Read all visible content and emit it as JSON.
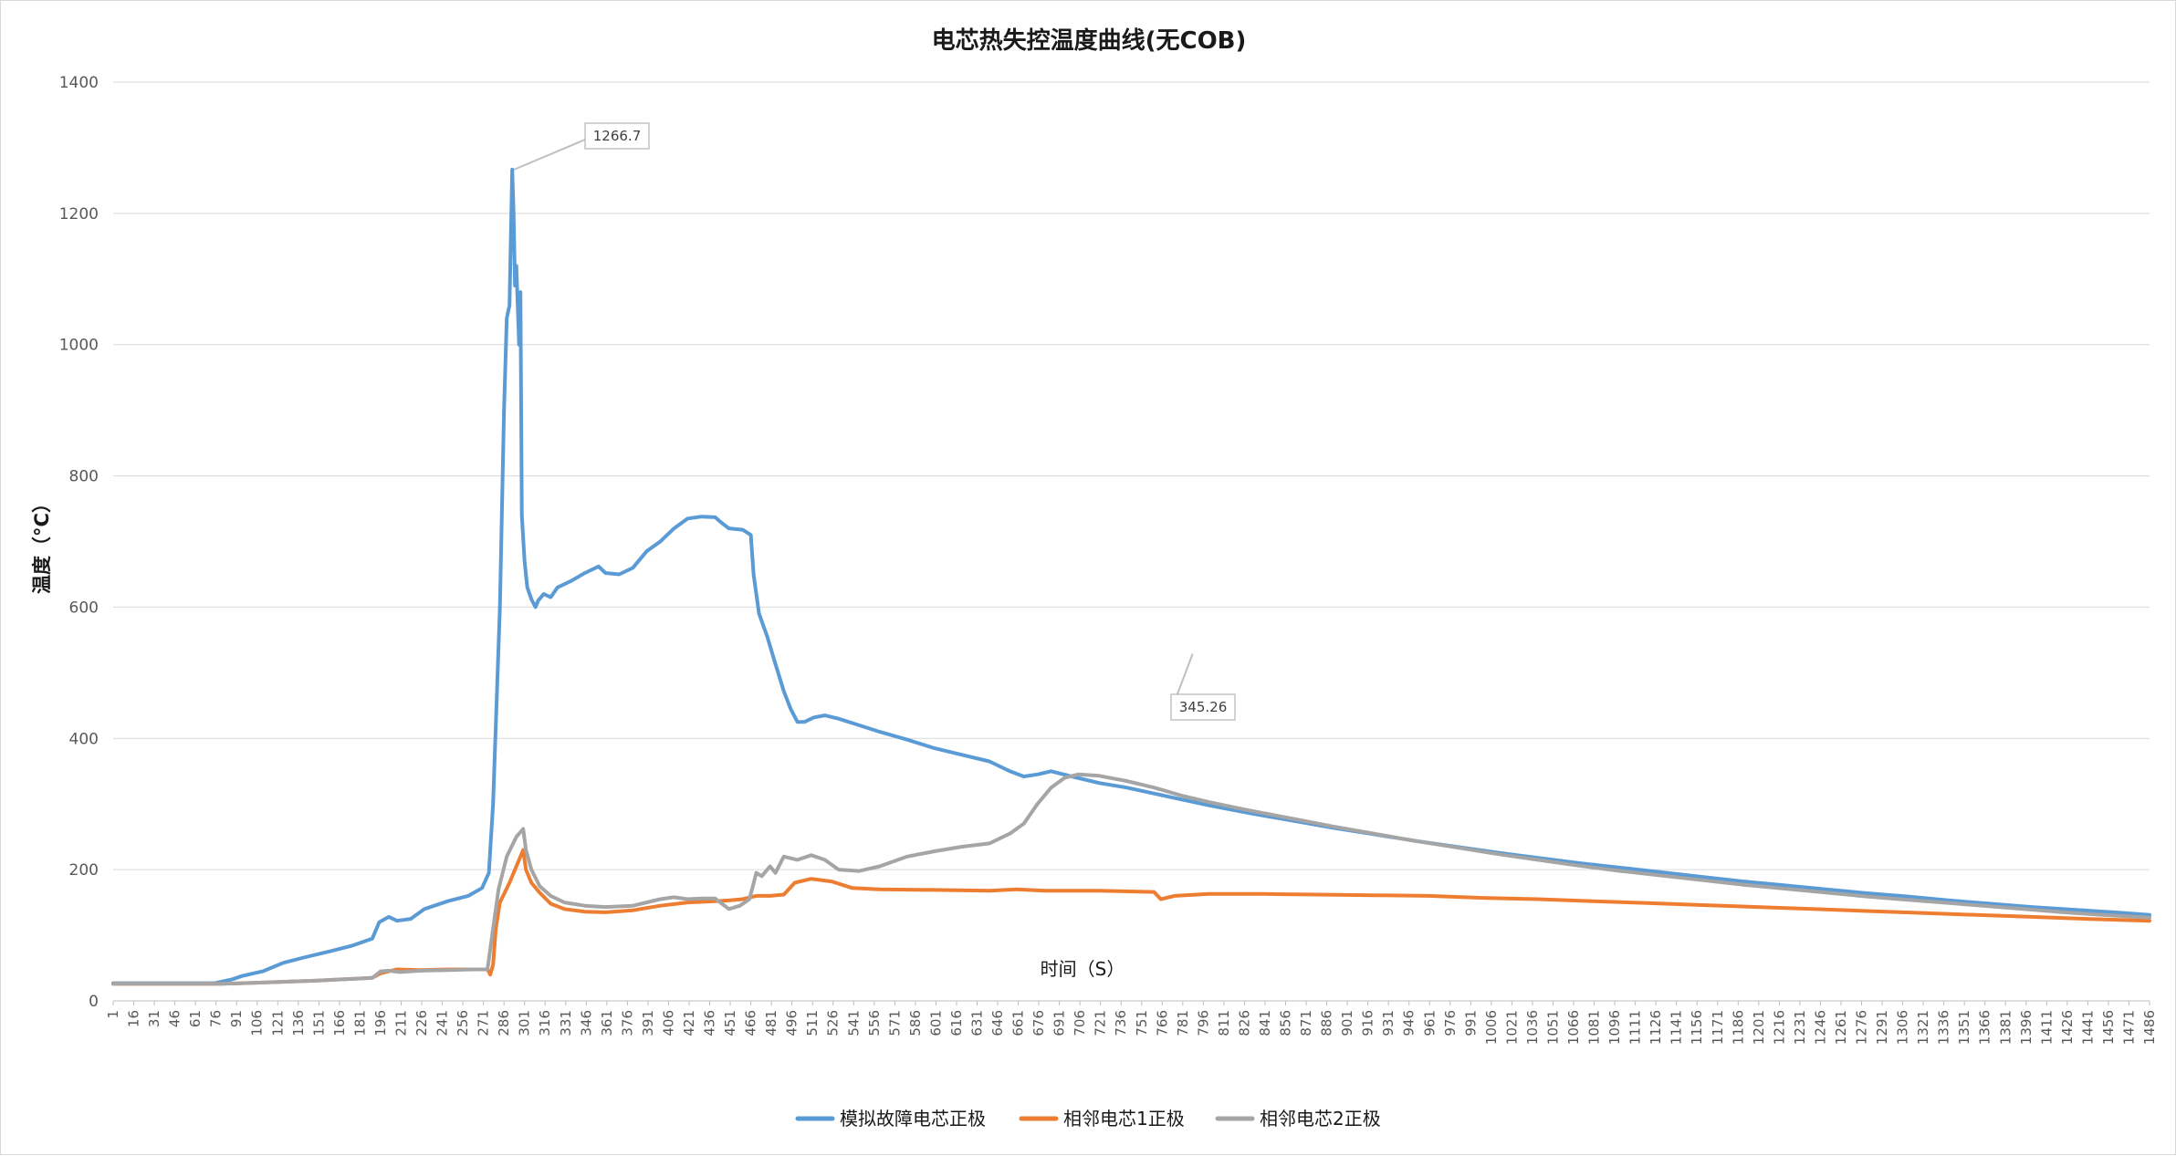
{
  "chart_data": {
    "type": "line",
    "title": "电芯热失控温度曲线(无COB)",
    "xlabel": "时间（S）",
    "ylabel": "温度（°C）",
    "ylim": [
      0,
      1400
    ],
    "yticks": [
      0,
      200,
      400,
      600,
      800,
      1000,
      1200,
      1400
    ],
    "xlim": [
      1,
      1486
    ],
    "xtick_start": 1,
    "xtick_step": 15,
    "xtick_end": 1486,
    "grid": true,
    "legend_position": "bottom",
    "series": [
      {
        "name": "模拟故障电芯正极",
        "color": "#5B9BD5",
        "points": [
          [
            1,
            27
          ],
          [
            40,
            27
          ],
          [
            75,
            27
          ],
          [
            88,
            33
          ],
          [
            95,
            38
          ],
          [
            110,
            45
          ],
          [
            125,
            58
          ],
          [
            140,
            66
          ],
          [
            160,
            76
          ],
          [
            175,
            84
          ],
          [
            190,
            95
          ],
          [
            195,
            120
          ],
          [
            202,
            128
          ],
          [
            208,
            122
          ],
          [
            218,
            125
          ],
          [
            228,
            140
          ],
          [
            245,
            152
          ],
          [
            260,
            160
          ],
          [
            270,
            172
          ],
          [
            275,
            195
          ],
          [
            278,
            300
          ],
          [
            280,
            420
          ],
          [
            283,
            600
          ],
          [
            286,
            900
          ],
          [
            288,
            1040
          ],
          [
            290,
            1060
          ],
          [
            292,
            1266.7
          ],
          [
            293,
            1200
          ],
          [
            294,
            1090
          ],
          [
            295,
            1120
          ],
          [
            297,
            1000
          ],
          [
            298,
            1080
          ],
          [
            299,
            740
          ],
          [
            301,
            670
          ],
          [
            303,
            630
          ],
          [
            306,
            612
          ],
          [
            309,
            600
          ],
          [
            311,
            610
          ],
          [
            315,
            620
          ],
          [
            320,
            615
          ],
          [
            325,
            630
          ],
          [
            335,
            640
          ],
          [
            345,
            652
          ],
          [
            355,
            662
          ],
          [
            360,
            652
          ],
          [
            370,
            650
          ],
          [
            380,
            660
          ],
          [
            390,
            685
          ],
          [
            400,
            700
          ],
          [
            410,
            720
          ],
          [
            420,
            735
          ],
          [
            430,
            738
          ],
          [
            440,
            737
          ],
          [
            445,
            728
          ],
          [
            450,
            720
          ],
          [
            460,
            718
          ],
          [
            466,
            710
          ],
          [
            468,
            650
          ],
          [
            472,
            590
          ],
          [
            478,
            555
          ],
          [
            483,
            520
          ],
          [
            490,
            472
          ],
          [
            495,
            445
          ],
          [
            500,
            425
          ],
          [
            505,
            425
          ],
          [
            512,
            432
          ],
          [
            520,
            435
          ],
          [
            530,
            430
          ],
          [
            545,
            420
          ],
          [
            560,
            410
          ],
          [
            580,
            398
          ],
          [
            600,
            385
          ],
          [
            620,
            375
          ],
          [
            640,
            365
          ],
          [
            655,
            350
          ],
          [
            665,
            342
          ],
          [
            675,
            345
          ],
          [
            685,
            350
          ],
          [
            700,
            342
          ],
          [
            720,
            332
          ],
          [
            740,
            325
          ],
          [
            760,
            316
          ],
          [
            780,
            307
          ],
          [
            800,
            298
          ],
          [
            830,
            286
          ],
          [
            860,
            275
          ],
          [
            890,
            264
          ],
          [
            920,
            254
          ],
          [
            950,
            244
          ],
          [
            980,
            235
          ],
          [
            1010,
            226
          ],
          [
            1040,
            218
          ],
          [
            1070,
            210
          ],
          [
            1100,
            203
          ],
          [
            1130,
            196
          ],
          [
            1160,
            189
          ],
          [
            1190,
            182
          ],
          [
            1220,
            176
          ],
          [
            1250,
            170
          ],
          [
            1280,
            164
          ],
          [
            1310,
            159
          ],
          [
            1340,
            153
          ],
          [
            1370,
            148
          ],
          [
            1400,
            143
          ],
          [
            1430,
            139
          ],
          [
            1460,
            135
          ],
          [
            1486,
            131
          ]
        ]
      },
      {
        "name": "相邻电芯1正极",
        "color": "#ED7D31",
        "points": [
          [
            1,
            26
          ],
          [
            80,
            26
          ],
          [
            110,
            28
          ],
          [
            150,
            31
          ],
          [
            190,
            35
          ],
          [
            196,
            42
          ],
          [
            202,
            45
          ],
          [
            208,
            48
          ],
          [
            225,
            47
          ],
          [
            245,
            48
          ],
          [
            265,
            48
          ],
          [
            274,
            48
          ],
          [
            276,
            40
          ],
          [
            278,
            55
          ],
          [
            280,
            110
          ],
          [
            283,
            150
          ],
          [
            290,
            180
          ],
          [
            300,
            230
          ],
          [
            302,
            200
          ],
          [
            306,
            180
          ],
          [
            312,
            165
          ],
          [
            320,
            148
          ],
          [
            330,
            140
          ],
          [
            345,
            136
          ],
          [
            360,
            135
          ],
          [
            380,
            138
          ],
          [
            400,
            145
          ],
          [
            420,
            150
          ],
          [
            440,
            152
          ],
          [
            450,
            153
          ],
          [
            460,
            155
          ],
          [
            470,
            160
          ],
          [
            480,
            160
          ],
          [
            490,
            162
          ],
          [
            498,
            180
          ],
          [
            510,
            186
          ],
          [
            525,
            182
          ],
          [
            540,
            172
          ],
          [
            560,
            170
          ],
          [
            600,
            169
          ],
          [
            640,
            168
          ],
          [
            660,
            170
          ],
          [
            680,
            168
          ],
          [
            720,
            168
          ],
          [
            760,
            166
          ],
          [
            765,
            155
          ],
          [
            775,
            160
          ],
          [
            800,
            163
          ],
          [
            840,
            163
          ],
          [
            880,
            162
          ],
          [
            920,
            161
          ],
          [
            960,
            160
          ],
          [
            1000,
            157
          ],
          [
            1040,
            155
          ],
          [
            1080,
            152
          ],
          [
            1120,
            149
          ],
          [
            1160,
            146
          ],
          [
            1200,
            143
          ],
          [
            1240,
            140
          ],
          [
            1280,
            137
          ],
          [
            1320,
            134
          ],
          [
            1360,
            131
          ],
          [
            1400,
            128
          ],
          [
            1440,
            125
          ],
          [
            1486,
            122
          ]
        ]
      },
      {
        "name": "相邻电芯2正极",
        "color": "#A5A5A5",
        "points": [
          [
            1,
            26
          ],
          [
            80,
            26
          ],
          [
            110,
            28
          ],
          [
            150,
            31
          ],
          [
            190,
            35
          ],
          [
            196,
            45
          ],
          [
            202,
            46
          ],
          [
            210,
            44
          ],
          [
            225,
            46
          ],
          [
            245,
            47
          ],
          [
            265,
            48
          ],
          [
            274,
            48
          ],
          [
            278,
            110
          ],
          [
            282,
            170
          ],
          [
            288,
            220
          ],
          [
            295,
            250
          ],
          [
            300,
            262
          ],
          [
            302,
            230
          ],
          [
            306,
            200
          ],
          [
            312,
            175
          ],
          [
            320,
            160
          ],
          [
            330,
            150
          ],
          [
            345,
            145
          ],
          [
            360,
            143
          ],
          [
            380,
            145
          ],
          [
            400,
            155
          ],
          [
            410,
            158
          ],
          [
            420,
            155
          ],
          [
            430,
            156
          ],
          [
            440,
            156
          ],
          [
            445,
            148
          ],
          [
            450,
            140
          ],
          [
            458,
            145
          ],
          [
            465,
            155
          ],
          [
            470,
            195
          ],
          [
            474,
            190
          ],
          [
            480,
            205
          ],
          [
            484,
            195
          ],
          [
            490,
            220
          ],
          [
            500,
            215
          ],
          [
            510,
            222
          ],
          [
            520,
            215
          ],
          [
            530,
            200
          ],
          [
            545,
            198
          ],
          [
            560,
            205
          ],
          [
            580,
            220
          ],
          [
            600,
            228
          ],
          [
            620,
            235
          ],
          [
            640,
            240
          ],
          [
            655,
            255
          ],
          [
            665,
            270
          ],
          [
            675,
            300
          ],
          [
            685,
            325
          ],
          [
            695,
            340
          ],
          [
            705,
            345.26
          ],
          [
            720,
            343
          ],
          [
            740,
            335
          ],
          [
            760,
            325
          ],
          [
            780,
            313
          ],
          [
            800,
            303
          ],
          [
            830,
            290
          ],
          [
            860,
            278
          ],
          [
            890,
            266
          ],
          [
            920,
            255
          ],
          [
            950,
            244
          ],
          [
            980,
            234
          ],
          [
            1010,
            224
          ],
          [
            1040,
            215
          ],
          [
            1070,
            206
          ],
          [
            1100,
            198
          ],
          [
            1130,
            191
          ],
          [
            1160,
            184
          ],
          [
            1190,
            177
          ],
          [
            1220,
            171
          ],
          [
            1250,
            165
          ],
          [
            1280,
            159
          ],
          [
            1310,
            154
          ],
          [
            1340,
            149
          ],
          [
            1370,
            144
          ],
          [
            1400,
            139
          ],
          [
            1430,
            134
          ],
          [
            1460,
            130
          ],
          [
            1486,
            127
          ]
        ]
      }
    ],
    "annotations": [
      {
        "label": "1266.7",
        "series": 0,
        "x": 292,
        "y": 1266.7
      },
      {
        "label": "345.26",
        "series": 2,
        "x": 705,
        "y": 345.26
      }
    ]
  }
}
